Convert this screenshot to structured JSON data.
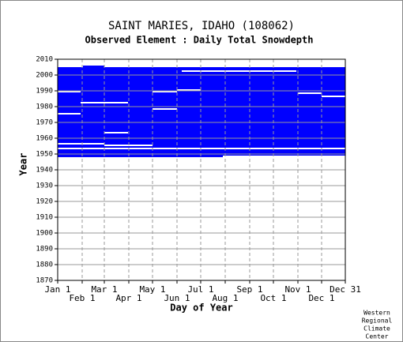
{
  "chart_data": {
    "type": "coverage",
    "title": "SAINT MARIES, IDAHO   (108062)",
    "subtitle": "Observed Element : Daily Total Snowdepth",
    "xlabel": "Day of Year",
    "ylabel": "Year",
    "credit": [
      "Western",
      "Regional",
      "Climate",
      "Center"
    ],
    "xlim": [
      1,
      365
    ],
    "xticks": [
      {
        "value": 1,
        "label": "Jan 1"
      },
      {
        "value": 32,
        "label": "Feb 1"
      },
      {
        "value": 60,
        "label": "Mar 1"
      },
      {
        "value": 91,
        "label": "Apr 1"
      },
      {
        "value": 121,
        "label": "May 1"
      },
      {
        "value": 152,
        "label": "Jun 1"
      },
      {
        "value": 182,
        "label": "Jul 1"
      },
      {
        "value": 213,
        "label": "Aug 1"
      },
      {
        "value": 244,
        "label": "Sep 1"
      },
      {
        "value": 274,
        "label": "Oct 1"
      },
      {
        "value": 305,
        "label": "Nov 1"
      },
      {
        "value": 335,
        "label": "Dec 1"
      },
      {
        "value": 365,
        "label": "Dec 31"
      }
    ],
    "ylim": [
      1870,
      2010
    ],
    "yticks": [
      1870,
      1880,
      1890,
      1900,
      1910,
      1920,
      1930,
      1940,
      1950,
      1960,
      1970,
      1980,
      1990,
      2000,
      2010
    ],
    "grid": true,
    "color": "#0000ff",
    "missing_color": "#ffffff",
    "coverage": [
      {
        "days": [
          1,
          365
        ],
        "years": [
          1949,
          2005
        ]
      },
      {
        "days": [
          1,
          210
        ],
        "years": [
          1948,
          1949
        ]
      },
      {
        "days": [
          33,
          60
        ],
        "years": [
          2005,
          2006
        ]
      }
    ],
    "missing": [
      {
        "days": [
          1,
          365
        ],
        "years": [
          1953,
          1954
        ]
      },
      {
        "days": [
          60,
          121
        ],
        "years": [
          1955,
          1956
        ]
      },
      {
        "days": [
          1,
          60
        ],
        "years": [
          1956,
          1957
        ]
      },
      {
        "days": [
          60,
          90
        ],
        "years": [
          1963,
          1964
        ]
      },
      {
        "days": [
          1,
          30
        ],
        "years": [
          1975,
          1976
        ]
      },
      {
        "days": [
          121,
          152
        ],
        "years": [
          1978,
          1979
        ]
      },
      {
        "days": [
          30,
          90
        ],
        "years": [
          1982,
          1983
        ]
      },
      {
        "days": [
          335,
          365
        ],
        "years": [
          1986,
          1987
        ]
      },
      {
        "days": [
          305,
          335
        ],
        "years": [
          1988,
          1989
        ]
      },
      {
        "days": [
          1,
          30
        ],
        "years": [
          1989,
          1990
        ]
      },
      {
        "days": [
          121,
          152
        ],
        "years": [
          1989,
          1990
        ]
      },
      {
        "days": [
          152,
          182
        ],
        "years": [
          1990,
          1991
        ]
      },
      {
        "days": [
          158,
          303
        ],
        "years": [
          2002,
          2003
        ]
      }
    ]
  }
}
